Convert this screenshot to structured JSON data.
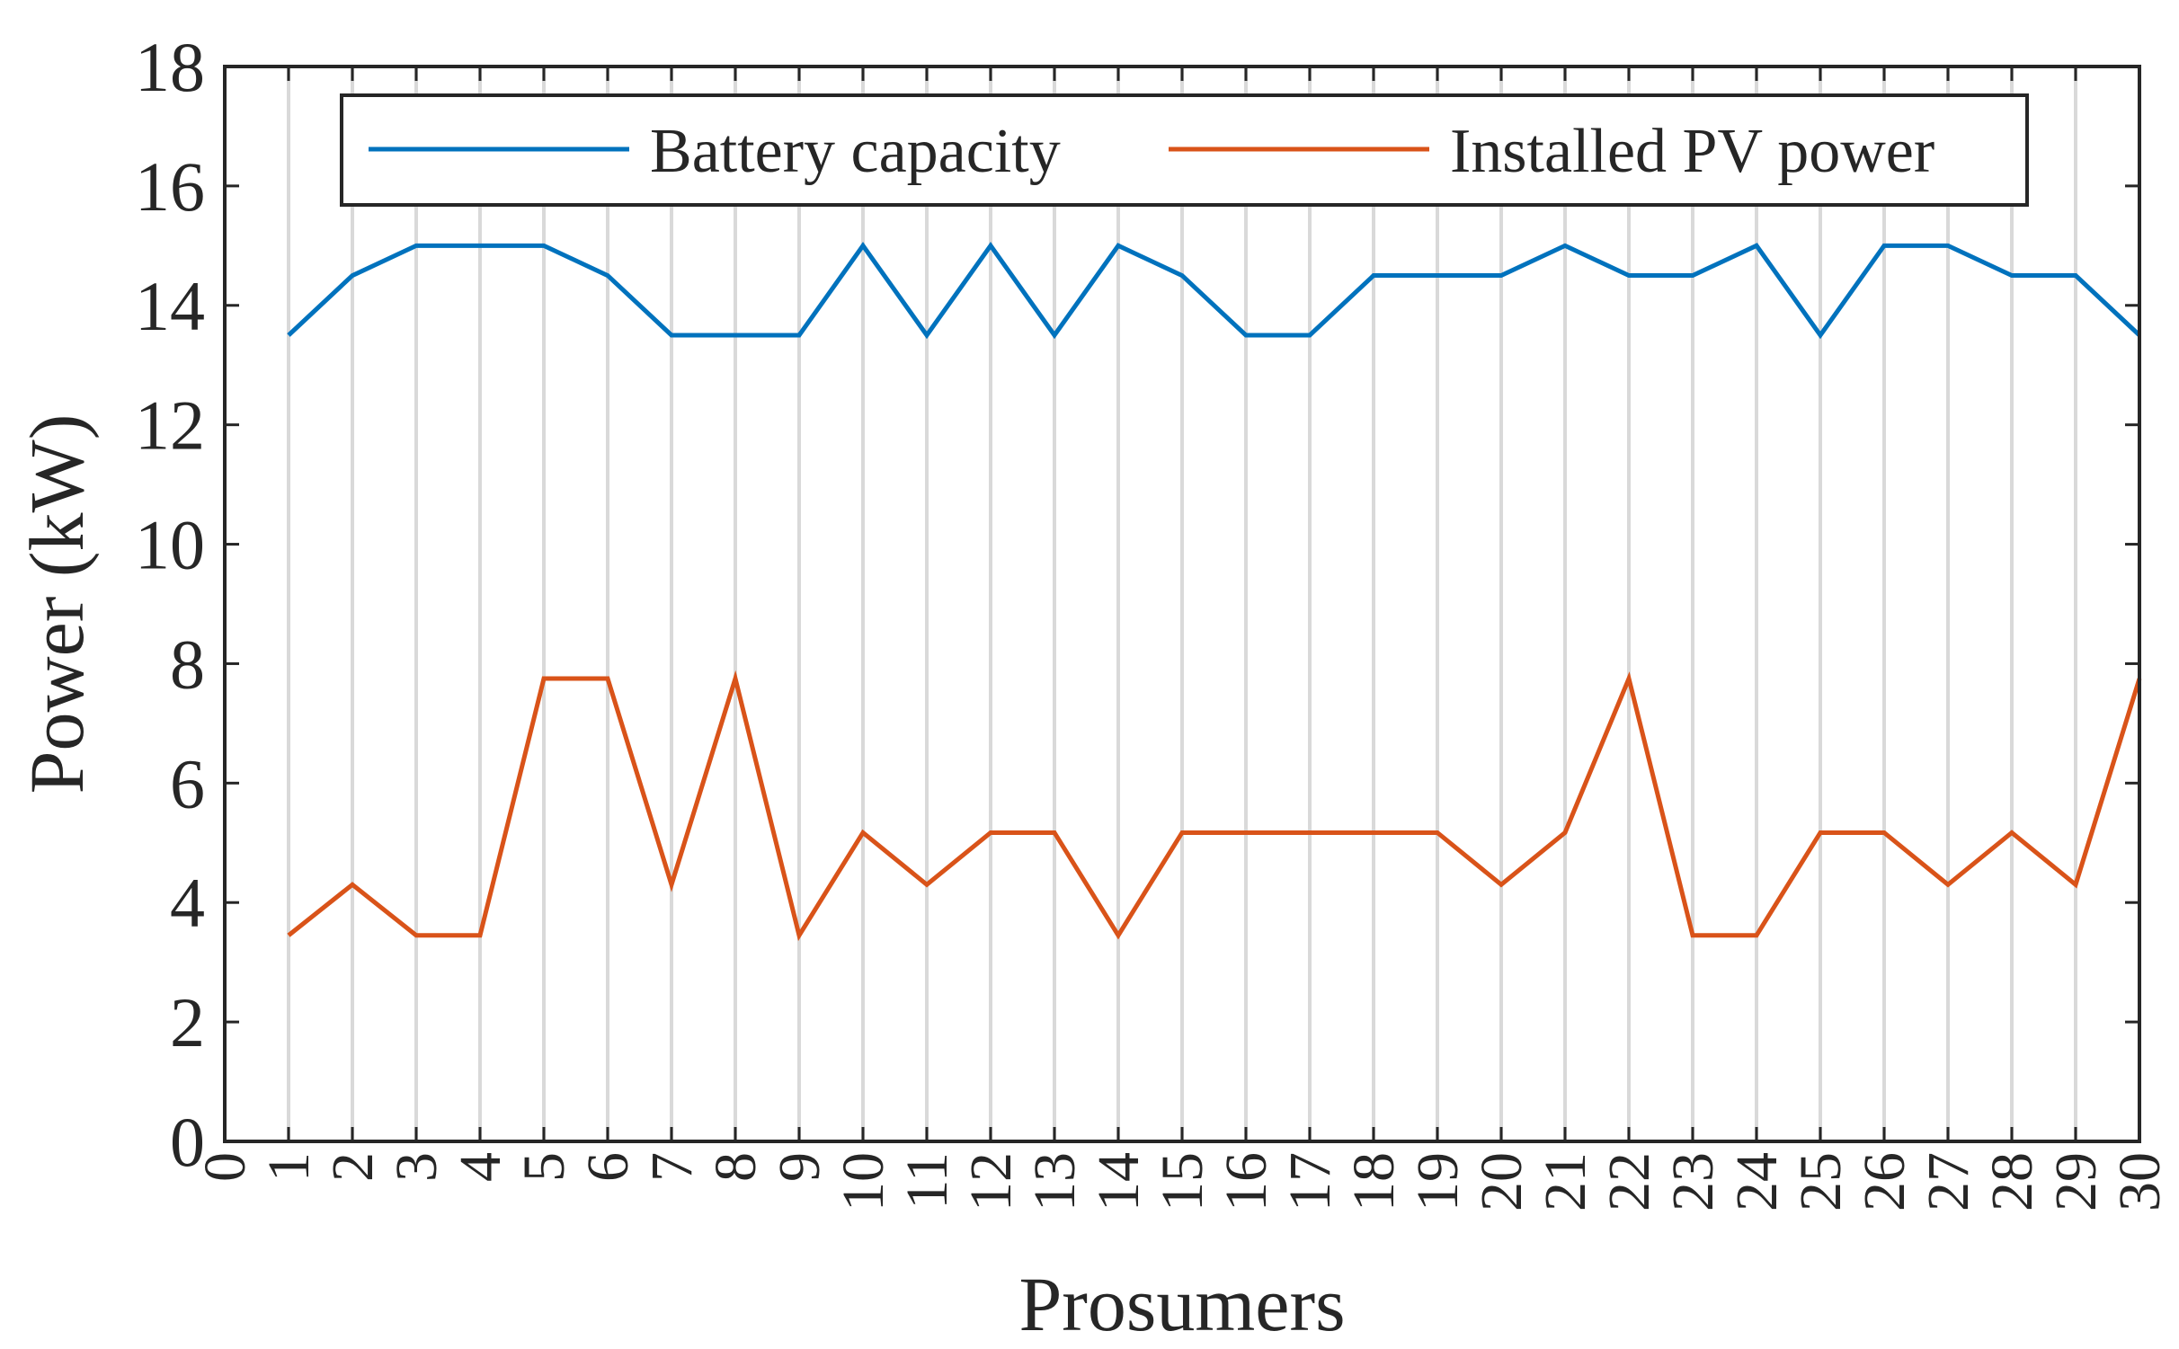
{
  "chart_data": {
    "type": "line",
    "xlabel": "Prosumers",
    "ylabel": "Power (kW)",
    "xlim": [
      0,
      30
    ],
    "ylim": [
      0,
      18
    ],
    "x_ticks": [
      0,
      1,
      2,
      3,
      4,
      5,
      6,
      7,
      8,
      9,
      10,
      11,
      12,
      13,
      14,
      15,
      16,
      17,
      18,
      19,
      20,
      21,
      22,
      23,
      24,
      25,
      26,
      27,
      28,
      29,
      30
    ],
    "y_ticks": [
      0,
      2,
      4,
      6,
      8,
      10,
      12,
      14,
      16,
      18
    ],
    "x_tick_labels": [
      "0",
      "1",
      "2",
      "3",
      "4",
      "5",
      "6",
      "7",
      "8",
      "9",
      "10",
      "11",
      "12",
      "13",
      "14",
      "15",
      "16",
      "17",
      "18",
      "19",
      "20",
      "21",
      "22",
      "23",
      "24",
      "25",
      "26",
      "27",
      "28",
      "29",
      "30"
    ],
    "y_tick_labels": [
      "0",
      "2",
      "4",
      "6",
      "8",
      "10",
      "12",
      "14",
      "16",
      "18"
    ],
    "x_tick_rotation": "vertical",
    "grid": "vertical lines at each prosumer",
    "legend_position": "top",
    "x": [
      1,
      2,
      3,
      4,
      5,
      6,
      7,
      8,
      9,
      10,
      11,
      12,
      13,
      14,
      15,
      16,
      17,
      18,
      19,
      20,
      21,
      22,
      23,
      24,
      25,
      26,
      27,
      28,
      29,
      30
    ],
    "series": [
      {
        "name": "Battery capacity",
        "color": "#0072BD",
        "values": [
          13.5,
          14.5,
          15,
          15,
          15,
          14.5,
          13.5,
          13.5,
          13.5,
          15,
          13.5,
          15,
          13.5,
          15,
          14.5,
          13.5,
          13.5,
          14.5,
          14.5,
          14.5,
          15,
          14.5,
          14.5,
          15,
          13.5,
          15,
          15,
          14.5,
          14.5,
          13.5
        ]
      },
      {
        "name": "Installed PV power",
        "color": "#D95319",
        "values": [
          3.45,
          4.3,
          3.45,
          3.45,
          7.75,
          7.75,
          4.3,
          7.75,
          3.45,
          5.17,
          4.3,
          5.17,
          5.17,
          3.45,
          5.17,
          5.17,
          5.17,
          5.17,
          5.17,
          4.3,
          5.17,
          7.75,
          3.45,
          3.45,
          5.17,
          5.17,
          4.3,
          5.17,
          4.3,
          7.75
        ]
      }
    ]
  }
}
